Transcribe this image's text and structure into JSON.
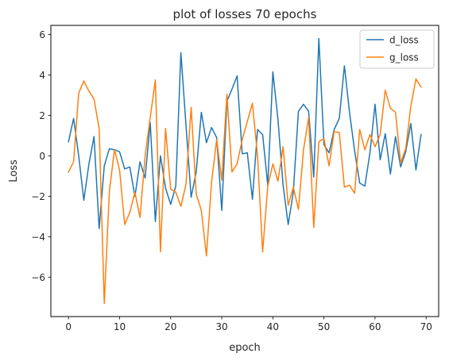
{
  "chart_data": {
    "type": "line",
    "title": "plot of losses 70 epochs",
    "xlabel": "epoch",
    "ylabel": "Loss",
    "xlim": [
      -3.45,
      72.45
    ],
    "ylim": [
      -7.95,
      6.45
    ],
    "xticks": [
      0,
      10,
      20,
      30,
      40,
      50,
      60,
      70
    ],
    "yticks": [
      -6,
      -4,
      -2,
      0,
      2,
      4,
      6
    ],
    "ytick_labels": [
      "−6",
      "−4",
      "−2",
      "0",
      "2",
      "4",
      "6"
    ],
    "grid": false,
    "legend_position": "top-right",
    "x": [
      0,
      1,
      2,
      3,
      4,
      5,
      6,
      7,
      8,
      9,
      10,
      11,
      12,
      13,
      14,
      15,
      16,
      17,
      18,
      19,
      20,
      21,
      22,
      23,
      24,
      25,
      26,
      27,
      28,
      29,
      30,
      31,
      32,
      33,
      34,
      35,
      36,
      37,
      38,
      39,
      40,
      41,
      42,
      43,
      44,
      45,
      46,
      47,
      48,
      49,
      50,
      51,
      52,
      53,
      54,
      55,
      56,
      57,
      58,
      59,
      60,
      61,
      62,
      63,
      64,
      65,
      66,
      67,
      68,
      69
    ],
    "series": [
      {
        "name": "d_loss",
        "color": "#1f77b4",
        "values": [
          0.7,
          1.85,
          0.0,
          -2.2,
          -0.4,
          0.95,
          -3.6,
          -0.5,
          0.35,
          0.3,
          0.2,
          -0.65,
          -0.55,
          -2.0,
          -0.3,
          -1.1,
          1.65,
          -3.25,
          0.0,
          -1.6,
          -2.4,
          -1.5,
          5.1,
          1.5,
          -2.05,
          -0.8,
          2.15,
          0.65,
          1.4,
          0.9,
          -2.7,
          2.7,
          3.3,
          3.95,
          0.1,
          0.15,
          -2.15,
          1.3,
          1.05,
          -1.45,
          4.15,
          1.8,
          -1.45,
          -3.4,
          -1.8,
          2.2,
          2.55,
          2.2,
          -1.05,
          5.8,
          0.55,
          0.15,
          1.3,
          1.85,
          4.45,
          2.15,
          0.25,
          -1.35,
          -1.5,
          0.15,
          2.55,
          -0.2,
          1.1,
          -0.9,
          0.95,
          -0.55,
          0.2,
          1.6,
          -0.7,
          1.05
        ]
      },
      {
        "name": "g_loss",
        "color": "#ff7f0e",
        "values": [
          -0.8,
          -0.3,
          3.1,
          3.7,
          3.2,
          2.8,
          1.35,
          -7.3,
          -1.75,
          0.3,
          -0.7,
          -3.4,
          -2.8,
          -1.8,
          -3.05,
          0.0,
          1.9,
          3.75,
          -4.75,
          1.35,
          -1.65,
          -1.8,
          -2.5,
          -1.4,
          2.4,
          -1.9,
          -2.7,
          -4.95,
          -1.3,
          0.8,
          -1.2,
          3.05,
          -0.8,
          -0.4,
          0.8,
          1.7,
          2.6,
          0.0,
          -4.75,
          -1.5,
          -0.4,
          -1.25,
          0.45,
          -2.45,
          -1.55,
          -2.65,
          0.3,
          1.9,
          -3.55,
          0.7,
          0.85,
          -0.5,
          1.2,
          1.15,
          -1.55,
          -1.45,
          -1.85,
          1.3,
          0.3,
          1.05,
          0.45,
          1.05,
          3.25,
          2.35,
          2.15,
          -0.35,
          0.35,
          2.45,
          3.8,
          3.4
        ]
      }
    ]
  }
}
